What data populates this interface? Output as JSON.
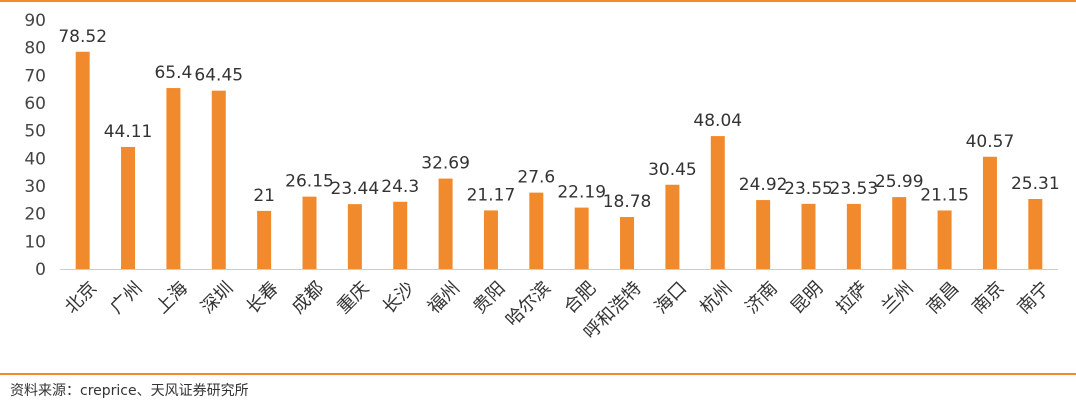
{
  "chart_data": {
    "type": "bar",
    "title": "",
    "xlabel": "",
    "ylabel": "",
    "ylim": [
      0,
      90
    ],
    "yticks": [
      0,
      10,
      20,
      30,
      40,
      50,
      60,
      70,
      80,
      90
    ],
    "grid": false,
    "bar_color": "#f08a2c",
    "categories": [
      "北京",
      "广州",
      "上海",
      "深圳",
      "长春",
      "成都",
      "重庆",
      "长沙",
      "福州",
      "贵阳",
      "哈尔滨",
      "合肥",
      "呼和浩特",
      "海口",
      "杭州",
      "济南",
      "昆明",
      "拉萨",
      "兰州",
      "南昌",
      "南京",
      "南宁"
    ],
    "values": [
      78.52,
      44.11,
      65.4,
      64.45,
      21,
      26.15,
      23.44,
      24.3,
      32.69,
      21.17,
      27.6,
      22.19,
      18.78,
      30.45,
      48.04,
      24.92,
      23.55,
      23.53,
      25.99,
      21.15,
      40.57,
      25.31
    ],
    "data_labels": [
      "78.52",
      "44.11",
      "65.4",
      "64.45",
      "21",
      "26.15",
      "23.44",
      "24.3",
      "32.69",
      "21.17",
      "27.6",
      "22.19",
      "18.78",
      "30.45",
      "48.04",
      "24.92",
      "23.55",
      "23.53",
      "25.99",
      "21.15",
      "40.57",
      "25.31"
    ]
  },
  "footer": {
    "source": "资料来源：creprice、天风证券研究所"
  },
  "colors": {
    "accent": "#f08a2c",
    "axis": "#cccccc"
  }
}
